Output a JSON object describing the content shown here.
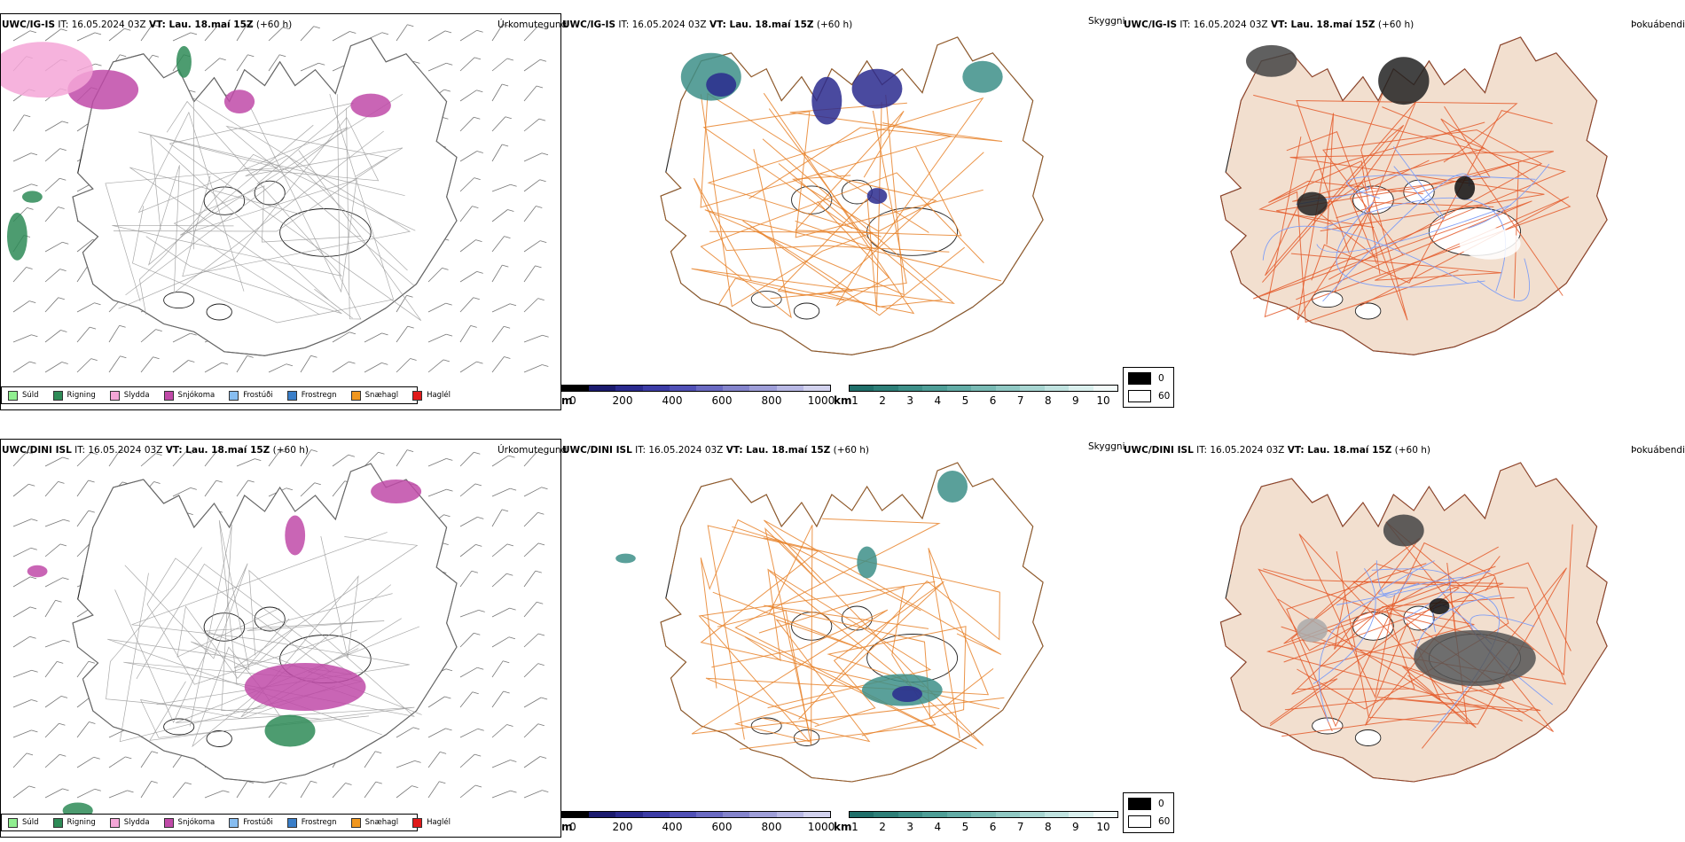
{
  "rows": [
    {
      "model": "UWC/IG-IS",
      "it_label": "IT: 16.05.2024 03Z",
      "vt_label": "VT: Lau. 18.maí 15Z",
      "lead": "(+60 h)"
    },
    {
      "model": "UWC/DINI ISL",
      "it_label": "IT: 16.05.2024 03Z",
      "vt_label": "VT: Lau. 18.maí 15Z",
      "lead": "(+60 h)"
    }
  ],
  "panel_titles": {
    "precip_type": "Úrkomutegund",
    "visibility": "Skyggni",
    "fog": "Þokuábendi"
  },
  "precip_legend": [
    {
      "label": "Súld",
      "color": "#90ee90"
    },
    {
      "label": "Rigning",
      "color": "#2e8b57"
    },
    {
      "label": "Slydda",
      "color": "#f4a6d7"
    },
    {
      "label": "Snjókoma",
      "color": "#c04aa8"
    },
    {
      "label": "Frostúði",
      "color": "#87bdf0"
    },
    {
      "label": "Frostregn",
      "color": "#3a7ec8"
    },
    {
      "label": "Snæhagl",
      "color": "#f0961e"
    },
    {
      "label": "Haglél",
      "color": "#e01a1a"
    }
  ],
  "visibility_scale_m": {
    "unit": "m",
    "ticks": [
      "0",
      "200",
      "400",
      "600",
      "800",
      "1000"
    ],
    "colors": [
      "#000000",
      "#1a1a6e",
      "#2a2a8e",
      "#3c3ca6",
      "#5050b6",
      "#6a6ac2",
      "#8484cc",
      "#9e9ed8",
      "#b8b8e4",
      "#d2d2ee"
    ]
  },
  "visibility_scale_km": {
    "unit": "km",
    "ticks": [
      "1",
      "2",
      "3",
      "4",
      "5",
      "6",
      "7",
      "8",
      "9",
      "10"
    ],
    "colors": [
      "#1f6f6a",
      "#2d7f78",
      "#3d8f88",
      "#4e9e97",
      "#62aca6",
      "#78bab4",
      "#8fc8c3",
      "#a7d5d1",
      "#c0e3e0",
      "#daf0ee",
      "#f2faf9"
    ]
  },
  "fog_legend": [
    {
      "label": "0",
      "color": "#000000"
    },
    {
      "label": "60",
      "color": "#ffffff"
    }
  ],
  "colors": {
    "road": "#e8822a",
    "land_fog": "#f2dfcf",
    "road_fog": "#e45a2a",
    "river": "#7f9ef5",
    "snow": "#c04aa8",
    "rain": "#2e8b57",
    "sleet": "#f4a6d7",
    "vis_teal": "#3d8f88",
    "vis_blue": "#2a2a8e"
  }
}
